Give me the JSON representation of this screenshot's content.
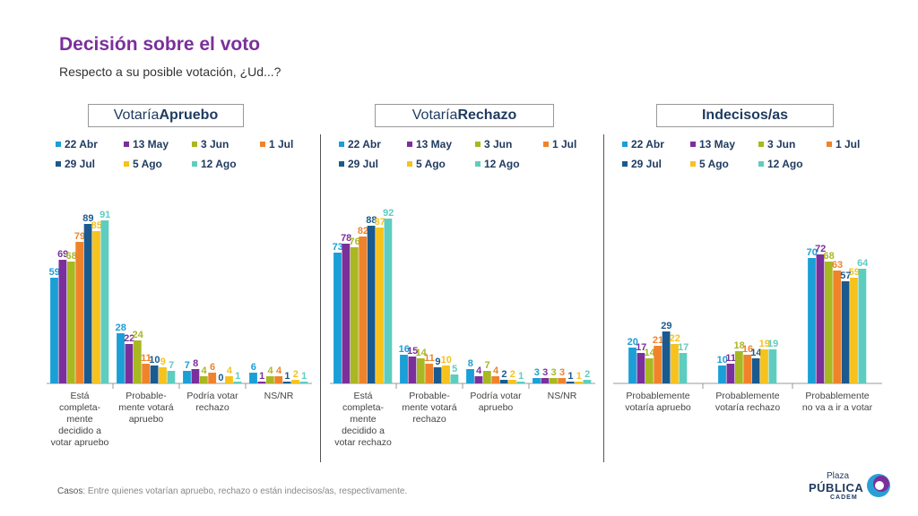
{
  "title": "Decisión sobre el voto",
  "subtitle": "Respecto a su posible votación, ¿Ud...?",
  "legend": [
    {
      "label": "22 Abr",
      "color": "#1a9fd6"
    },
    {
      "label": "13 May",
      "color": "#7b2f9b"
    },
    {
      "label": "3 Jun",
      "color": "#a8b820"
    },
    {
      "label": "1 Jul",
      "color": "#f0832a"
    },
    {
      "label": "29 Jul",
      "color": "#1a5a8f"
    },
    {
      "label": "5 Ago",
      "color": "#f7c21c"
    },
    {
      "label": "12 Ago",
      "color": "#5ecdc0"
    }
  ],
  "panels": [
    {
      "header_normal": "Votaría ",
      "header_bold": "Apruebo",
      "categories": [
        "Está completa- mente decidido a votar apruebo",
        "Probable- mente votará apruebo",
        "Podría votar rechazo",
        "NS/NR"
      ],
      "category_lines": [
        [
          "Está",
          "completa-",
          "mente",
          "decidido a",
          "votar apruebo"
        ],
        [
          "Probable-",
          "mente votará",
          "apruebo"
        ],
        [
          "Podría votar",
          "rechazo"
        ],
        [
          "NS/NR"
        ]
      ],
      "values": [
        [
          59,
          69,
          68,
          79,
          89,
          85,
          91
        ],
        [
          28,
          22,
          24,
          11,
          10,
          9,
          7
        ],
        [
          7,
          8,
          4,
          6,
          0,
          4,
          1
        ],
        [
          6,
          1,
          4,
          4,
          1,
          2,
          1
        ]
      ]
    },
    {
      "header_normal": "Votaría ",
      "header_bold": "Rechazo",
      "categories": [
        "Está completa- mente decidido a votar rechazo",
        "Probable- mente votará rechazo",
        "Podría votar apruebo",
        "NS/NR"
      ],
      "category_lines": [
        [
          "Está",
          "completa-",
          "mente",
          "decidido a",
          "votar rechazo"
        ],
        [
          "Probable-",
          "mente votará",
          "rechazo"
        ],
        [
          "Podría votar",
          "apruebo"
        ],
        [
          "NS/NR"
        ]
      ],
      "values": [
        [
          73,
          78,
          76,
          82,
          88,
          87,
          92
        ],
        [
          16,
          15,
          14,
          11,
          9,
          10,
          5
        ],
        [
          8,
          4,
          7,
          4,
          2,
          2,
          1
        ],
        [
          3,
          3,
          3,
          3,
          1,
          1,
          2
        ]
      ]
    },
    {
      "header_normal": "",
      "header_bold": "Indecisos/as",
      "categories": [
        "Probablemente votaría apruebo",
        "Probablemente votaría rechazo",
        "Probablemente no va a ir a votar"
      ],
      "category_lines": [
        [
          "Probablemente",
          "votaría apruebo"
        ],
        [
          "Probablemente",
          "votaría rechazo"
        ],
        [
          "Probablemente",
          "no va a ir a votar"
        ]
      ],
      "values": [
        [
          20,
          17,
          14,
          21,
          29,
          22,
          17
        ],
        [
          10,
          11,
          18,
          16,
          14,
          19,
          19
        ],
        [
          70,
          72,
          68,
          63,
          57,
          59,
          64
        ]
      ]
    }
  ],
  "chart_data": [
    {
      "type": "bar",
      "title": "Votaría Apruebo",
      "categories": [
        "Está completamente decidido a votar apruebo",
        "Probablemente votará apruebo",
        "Podría votar rechazo",
        "NS/NR"
      ],
      "series": [
        {
          "name": "22 Abr",
          "values": [
            59,
            28,
            7,
            6
          ]
        },
        {
          "name": "13 May",
          "values": [
            69,
            22,
            8,
            1
          ]
        },
        {
          "name": "3 Jun",
          "values": [
            68,
            24,
            4,
            4
          ]
        },
        {
          "name": "1 Jul",
          "values": [
            79,
            11,
            6,
            4
          ]
        },
        {
          "name": "29 Jul",
          "values": [
            89,
            10,
            0,
            1
          ]
        },
        {
          "name": "5 Ago",
          "values": [
            85,
            9,
            4,
            2
          ]
        },
        {
          "name": "12 Ago",
          "values": [
            91,
            7,
            1,
            1
          ]
        }
      ],
      "ylim": [
        0,
        100
      ]
    },
    {
      "type": "bar",
      "title": "Votaría Rechazo",
      "categories": [
        "Está completamente decidido a votar rechazo",
        "Probablemente votará rechazo",
        "Podría votar apruebo",
        "NS/NR"
      ],
      "series": [
        {
          "name": "22 Abr",
          "values": [
            73,
            16,
            8,
            3
          ]
        },
        {
          "name": "13 May",
          "values": [
            78,
            15,
            4,
            3
          ]
        },
        {
          "name": "3 Jun",
          "values": [
            76,
            14,
            7,
            3
          ]
        },
        {
          "name": "1 Jul",
          "values": [
            82,
            11,
            4,
            3
          ]
        },
        {
          "name": "29 Jul",
          "values": [
            88,
            9,
            2,
            1
          ]
        },
        {
          "name": "5 Ago",
          "values": [
            87,
            10,
            2,
            1
          ]
        },
        {
          "name": "12 Ago",
          "values": [
            92,
            5,
            1,
            2
          ]
        }
      ],
      "ylim": [
        0,
        100
      ]
    },
    {
      "type": "bar",
      "title": "Indecisos/as",
      "categories": [
        "Probablemente votaría apruebo",
        "Probablemente votaría rechazo",
        "Probablemente no va a ir a votar"
      ],
      "series": [
        {
          "name": "22 Abr",
          "values": [
            20,
            10,
            70
          ]
        },
        {
          "name": "13 May",
          "values": [
            17,
            11,
            72
          ]
        },
        {
          "name": "3 Jun",
          "values": [
            14,
            18,
            68
          ]
        },
        {
          "name": "1 Jul",
          "values": [
            21,
            16,
            63
          ]
        },
        {
          "name": "29 Jul",
          "values": [
            29,
            14,
            57
          ]
        },
        {
          "name": "5 Ago",
          "values": [
            22,
            19,
            59
          ]
        },
        {
          "name": "12 Ago",
          "values": [
            17,
            19,
            64
          ]
        }
      ],
      "ylim": [
        0,
        100
      ]
    }
  ],
  "footer": {
    "label": "Casos",
    "text": ": Entre quienes votarían apruebo, rechazo o están indecisos/as, respectivamente."
  },
  "logo": {
    "plaza": "Plaza",
    "publica": "PÚBLICA",
    "cadem": "CADEM"
  }
}
